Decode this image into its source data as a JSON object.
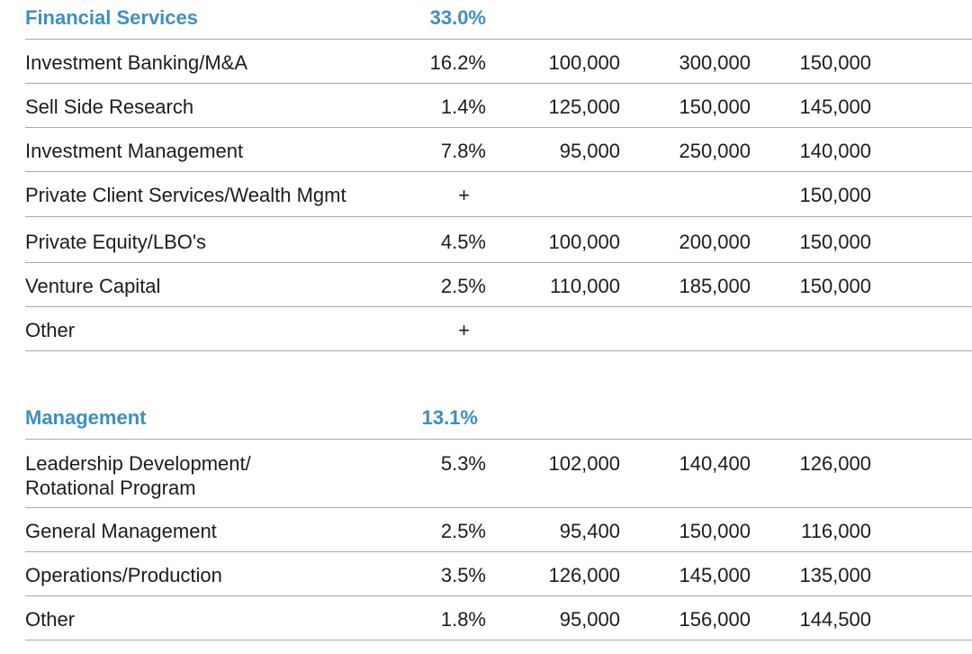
{
  "sections": [
    {
      "title": "Financial Services",
      "percent": "33.0%",
      "rows": [
        {
          "label": "Investment Banking/M&A",
          "pct": "16.2%",
          "low": "100,000",
          "high": "300,000",
          "median": "150,000"
        },
        {
          "label": "Sell Side Research",
          "pct": "1.4%",
          "low": "125,000",
          "high": "150,000",
          "median": "145,000"
        },
        {
          "label": "Investment Management",
          "pct": "7.8%",
          "low": "95,000",
          "high": "250,000",
          "median": "140,000"
        },
        {
          "label": "Private Client Services/Wealth Mgmt",
          "pct": "+",
          "low": "",
          "high": "",
          "median": "150,000"
        },
        {
          "label": "Private Equity/LBO's",
          "pct": "4.5%",
          "low": "100,000",
          "high": "200,000",
          "median": "150,000"
        },
        {
          "label": "Venture Capital",
          "pct": "2.5%",
          "low": "110,000",
          "high": "185,000",
          "median": "150,000"
        },
        {
          "label": "Other",
          "pct": "+",
          "low": "",
          "high": "",
          "median": ""
        }
      ]
    },
    {
      "title": "Management",
      "percent": "13.1%",
      "rows": [
        {
          "label_line1": "Leadership Development/",
          "label_line2": "Rotational Program",
          "pct": "5.3%",
          "low": "102,000",
          "high": "140,400",
          "median": "126,000"
        },
        {
          "label": "General Management",
          "pct": "2.5%",
          "low": "95,400",
          "high": "150,000",
          "median": "116,000"
        },
        {
          "label": "Operations/Production",
          "pct": "3.5%",
          "low": "126,000",
          "high": "145,000",
          "median": "135,000"
        },
        {
          "label": "Other",
          "pct": "1.8%",
          "low": "95,000",
          "high": "156,000",
          "median": "144,500"
        }
      ]
    }
  ]
}
